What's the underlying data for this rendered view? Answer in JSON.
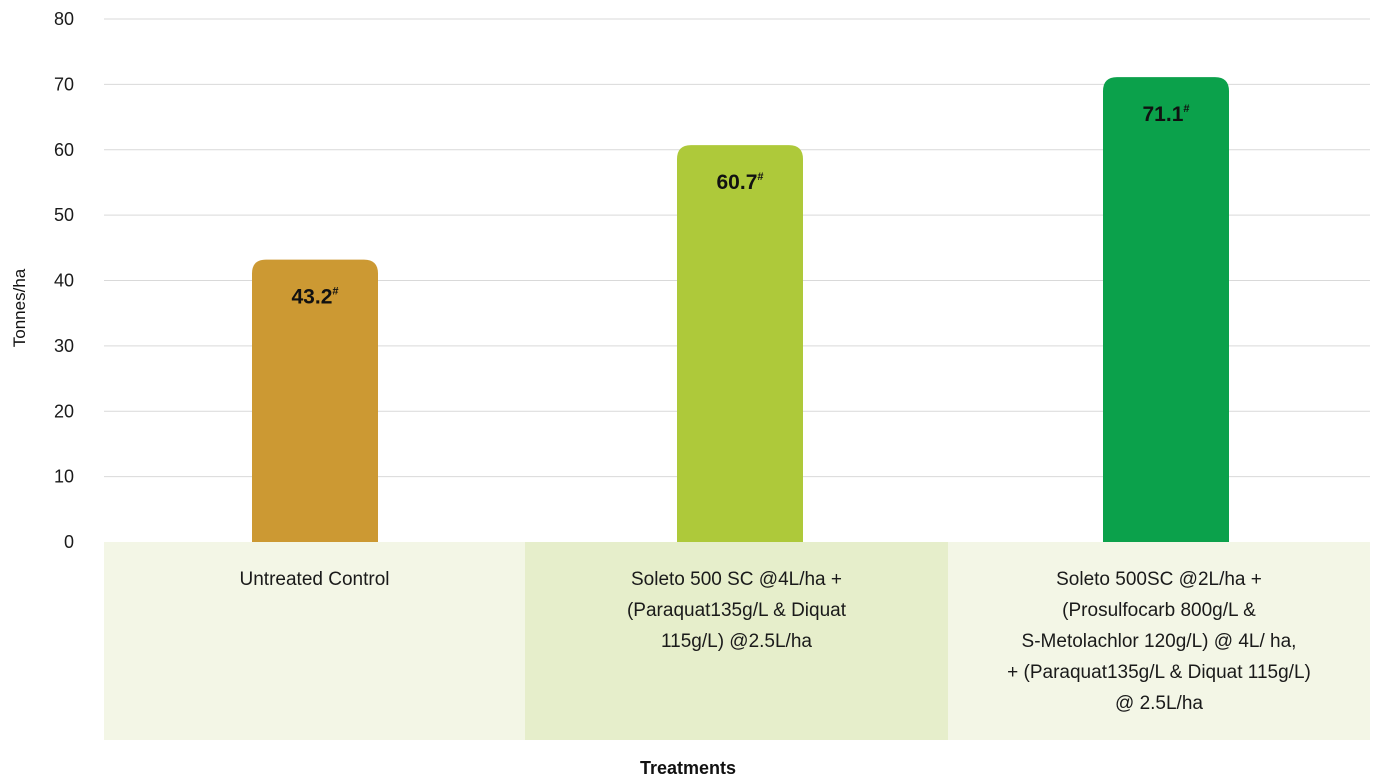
{
  "chart_data": {
    "type": "bar",
    "title": "",
    "xlabel": "Treatments",
    "ylabel": "Tonnes/ha",
    "ylim": [
      0,
      80
    ],
    "yticks": [
      0,
      10,
      20,
      30,
      40,
      50,
      60,
      70,
      80
    ],
    "grid": true,
    "categories": [
      "Untreated Control",
      "Soleto 500 SC @4L/ha +\n(Paraquat135g/L & Diquat\n115g/L) @2.5L/ha",
      "Soleto 500SC @2L/ha +\n(Prosulfocarb 800g/L &\nS-Metolachlor 120g/L) @ 4L/ ha,\n+ (Paraquat135g/L & Diquat 115g/L)\n@ 2.5L/ha"
    ],
    "values": [
      43.2,
      60.7,
      71.1
    ],
    "data_labels": [
      "43.2",
      "60.7",
      "71.1"
    ],
    "label_superscript": "#",
    "bar_colors": [
      "#CC9933",
      "#AEC93A",
      "#0BA14B"
    ],
    "category_band_colors": [
      "#F3F6E6",
      "#E6EECB",
      "#F3F6E6"
    ],
    "grid_color": "#D9D9D9"
  }
}
